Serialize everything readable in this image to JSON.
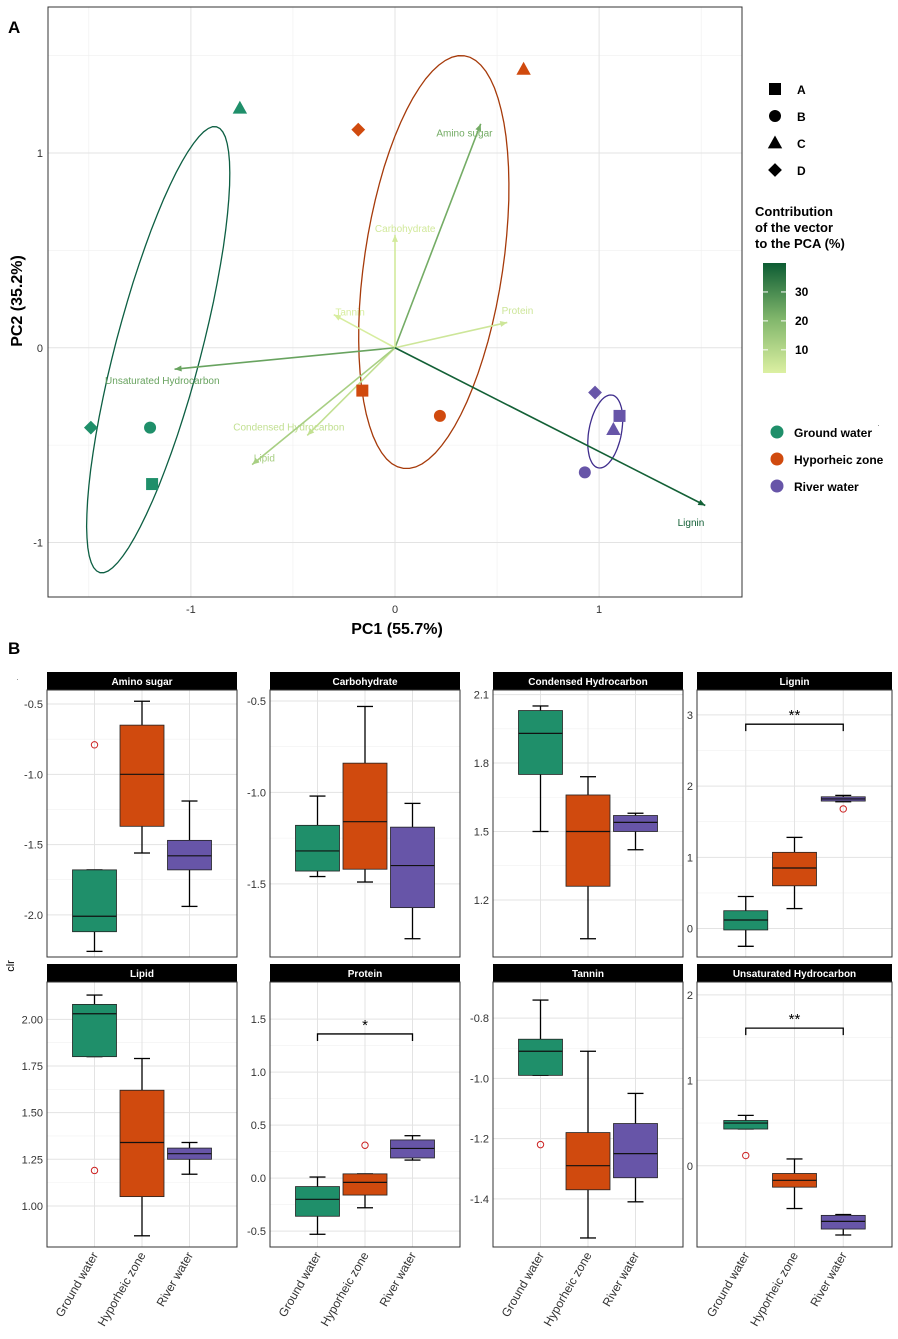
{
  "colors": {
    "ground": "#1f8f6a",
    "hyporheic": "#d04a0e",
    "river": "#6755a8",
    "ground_ellipse": "#0d5f43",
    "hyporheic_ellipse": "#a63a0a",
    "river_ellipse": "#3f2d8c",
    "facet_bg": "#000000",
    "grid": "#e3e3e3",
    "outlier": "#cc2222"
  },
  "chart_data": [
    {
      "type": "scatter",
      "subtype": "pca-biplot",
      "panel_label": "A",
      "xlabel": "PC1 (55.7%)",
      "ylabel": "PC2 (35.2%)",
      "xlim": [
        -1.7,
        1.7
      ],
      "ylim": [
        -1.28,
        1.75
      ],
      "xticks": [
        -1,
        0,
        1
      ],
      "yticks": [
        -1,
        0,
        1
      ],
      "points": [
        {
          "group": "Ground water",
          "shape": "A",
          "x": -1.19,
          "y": -0.7
        },
        {
          "group": "Ground water",
          "shape": "B",
          "x": -1.2,
          "y": -0.41
        },
        {
          "group": "Ground water",
          "shape": "C",
          "x": -0.76,
          "y": 1.23
        },
        {
          "group": "Ground water",
          "shape": "D",
          "x": -1.49,
          "y": -0.41
        },
        {
          "group": "Hyporheic zone",
          "shape": "A",
          "x": -0.16,
          "y": -0.22
        },
        {
          "group": "Hyporheic zone",
          "shape": "B",
          "x": 0.22,
          "y": -0.35
        },
        {
          "group": "Hyporheic zone",
          "shape": "C",
          "x": 0.63,
          "y": 1.43
        },
        {
          "group": "Hyporheic zone",
          "shape": "D",
          "x": -0.18,
          "y": 1.12
        },
        {
          "group": "River water",
          "shape": "A",
          "x": 1.1,
          "y": -0.35
        },
        {
          "group": "River water",
          "shape": "B",
          "x": 0.93,
          "y": -0.64
        },
        {
          "group": "River water",
          "shape": "C",
          "x": 1.07,
          "y": -0.42
        },
        {
          "group": "River water",
          "shape": "D",
          "x": 0.98,
          "y": -0.23
        }
      ],
      "ellipses": [
        {
          "group": "Ground water",
          "cx": -1.16,
          "cy": -0.01,
          "rx": 1.18,
          "ry": 0.21,
          "angle_deg": 76
        },
        {
          "group": "Hyporheic zone",
          "cx": 0.19,
          "cy": 0.44,
          "rx": 1.07,
          "ry": 0.34,
          "angle_deg": 82
        },
        {
          "group": "River water",
          "cx": 1.03,
          "cy": -0.43,
          "rx": 0.19,
          "ry": 0.08,
          "angle_deg": 80
        }
      ],
      "vectors": [
        {
          "label": "Amino sugar",
          "x": 0.42,
          "y": 1.15,
          "contribution": 22,
          "label_x": 0.34,
          "label_y": 1.1
        },
        {
          "label": "Carbohydrate",
          "x": 0.0,
          "y": 0.58,
          "contribution": 4,
          "label_x": 0.05,
          "label_y": 0.61
        },
        {
          "label": "Tannin",
          "x": -0.3,
          "y": 0.17,
          "contribution": 3,
          "label_x": -0.22,
          "label_y": 0.18
        },
        {
          "label": "Protein",
          "x": 0.55,
          "y": 0.13,
          "contribution": 5,
          "label_x": 0.6,
          "label_y": 0.19
        },
        {
          "label": "Unsaturated Hydrocarbon",
          "x": -1.08,
          "y": -0.11,
          "contribution": 24,
          "label_x": -1.14,
          "label_y": -0.17
        },
        {
          "label": "Condensed Hydrocarbon",
          "x": -0.43,
          "y": -0.45,
          "contribution": 7,
          "label_x": -0.52,
          "label_y": -0.41
        },
        {
          "label": "Lipid",
          "x": -0.7,
          "y": -0.6,
          "contribution": 12,
          "label_x": -0.64,
          "label_y": -0.57
        },
        {
          "label": "Lignin",
          "x": 1.52,
          "y": -0.81,
          "contribution": 39,
          "label_x": 1.45,
          "label_y": -0.9
        }
      ],
      "legend_shapes": {
        "title": "",
        "items": [
          "A",
          "B",
          "C",
          "D"
        ]
      },
      "legend_colorbar": {
        "title_lines": [
          "Contribution",
          "of the vector",
          "to the PCA (%)"
        ],
        "ticks": [
          10,
          20,
          30
        ],
        "range": [
          2,
          40
        ]
      },
      "legend_groups": {
        "items": [
          "Ground water",
          "Hyporheic zone",
          "River water"
        ]
      }
    },
    {
      "type": "box",
      "panel_label": "B",
      "ylabel": "clr",
      "categories": [
        "Ground water",
        "Hyporheic zone",
        "River water"
      ],
      "facets": [
        {
          "title": "Amino sugar",
          "ylim": [
            -2.3,
            -0.4
          ],
          "yticks": [
            -0.5,
            -1.0,
            -1.5,
            -2.0
          ],
          "tick_labels": [
            "-0.5",
            "-1.0",
            "-1.5",
            "-2.0"
          ],
          "boxes": [
            {
              "min": -2.26,
              "q1": -2.12,
              "median": -2.01,
              "q3": -1.68,
              "max": -1.68,
              "outliers": [
                -0.79
              ]
            },
            {
              "min": -1.56,
              "q1": -1.37,
              "median": -1.0,
              "q3": -0.65,
              "max": -0.48,
              "outliers": []
            },
            {
              "min": -1.94,
              "q1": -1.68,
              "median": -1.58,
              "q3": -1.47,
              "max": -1.19,
              "outliers": []
            }
          ],
          "significance": null
        },
        {
          "title": "Carbohydrate",
          "ylim": [
            -1.9,
            -0.44
          ],
          "yticks": [
            -0.5,
            -1.0,
            -1.5
          ],
          "tick_labels": [
            "-0.5",
            "-1.0",
            "-1.5"
          ],
          "boxes": [
            {
              "min": -1.46,
              "q1": -1.43,
              "median": -1.32,
              "q3": -1.18,
              "max": -1.02,
              "outliers": []
            },
            {
              "min": -1.49,
              "q1": -1.42,
              "median": -1.16,
              "q3": -0.84,
              "max": -0.53,
              "outliers": []
            },
            {
              "min": -1.8,
              "q1": -1.63,
              "median": -1.4,
              "q3": -1.19,
              "max": -1.06,
              "outliers": []
            }
          ],
          "significance": null
        },
        {
          "title": "Condensed Hydrocarbon",
          "ylim": [
            0.95,
            2.12
          ],
          "yticks": [
            2.1,
            1.8,
            1.5,
            1.2
          ],
          "tick_labels": [
            "2.1",
            "1.8",
            "1.5",
            "1.2"
          ],
          "boxes": [
            {
              "min": 1.5,
              "q1": 1.75,
              "median": 1.93,
              "q3": 2.03,
              "max": 2.05,
              "outliers": []
            },
            {
              "min": 1.03,
              "q1": 1.26,
              "median": 1.5,
              "q3": 1.66,
              "max": 1.74,
              "outliers": []
            },
            {
              "min": 1.42,
              "q1": 1.5,
              "median": 1.54,
              "q3": 1.57,
              "max": 1.58,
              "outliers": []
            }
          ],
          "significance": null
        },
        {
          "title": "Lignin",
          "ylim": [
            -0.4,
            3.35
          ],
          "yticks": [
            3,
            2,
            1,
            0
          ],
          "tick_labels": [
            "3",
            "2",
            "1",
            "0"
          ],
          "boxes": [
            {
              "min": -0.25,
              "q1": -0.02,
              "median": 0.12,
              "q3": 0.25,
              "max": 0.45,
              "outliers": []
            },
            {
              "min": 0.28,
              "q1": 0.6,
              "median": 0.85,
              "q3": 1.07,
              "max": 1.28,
              "outliers": []
            },
            {
              "min": 1.78,
              "q1": 1.79,
              "median": 1.82,
              "q3": 1.85,
              "max": 1.87,
              "outliers": [
                1.68
              ]
            }
          ],
          "significance": {
            "label": "**",
            "from": 0,
            "to": 2,
            "y": 2.87
          }
        },
        {
          "title": "Lipid",
          "ylim": [
            0.78,
            2.2
          ],
          "yticks": [
            2.0,
            1.75,
            1.5,
            1.25,
            1.0
          ],
          "tick_labels": [
            "2.00",
            "1.75",
            "1.50",
            "1.25",
            "1.00"
          ],
          "boxes": [
            {
              "min": 1.8,
              "q1": 1.8,
              "median": 2.03,
              "q3": 2.08,
              "max": 2.13,
              "outliers": [
                1.19
              ]
            },
            {
              "min": 0.84,
              "q1": 1.05,
              "median": 1.34,
              "q3": 1.62,
              "max": 1.79,
              "outliers": []
            },
            {
              "min": 1.17,
              "q1": 1.25,
              "median": 1.28,
              "q3": 1.31,
              "max": 1.34,
              "outliers": []
            }
          ],
          "significance": null
        },
        {
          "title": "Protein",
          "ylim": [
            -0.65,
            1.85
          ],
          "yticks": [
            1.5,
            1.0,
            0.5,
            0.0,
            -0.5
          ],
          "tick_labels": [
            "1.5",
            "1.0",
            "0.5",
            "0.0",
            "-0.5"
          ],
          "boxes": [
            {
              "min": -0.53,
              "q1": -0.36,
              "median": -0.2,
              "q3": -0.08,
              "max": 0.01,
              "outliers": []
            },
            {
              "min": -0.28,
              "q1": -0.16,
              "median": -0.04,
              "q3": 0.04,
              "max": 0.04,
              "outliers": [
                0.31
              ]
            },
            {
              "min": 0.17,
              "q1": 0.19,
              "median": 0.28,
              "q3": 0.36,
              "max": 0.4,
              "outliers": []
            }
          ],
          "significance": {
            "label": "*",
            "from": 0,
            "to": 2,
            "y": 1.36
          }
        },
        {
          "title": "Tannin",
          "ylim": [
            -1.56,
            -0.68
          ],
          "yticks": [
            -0.8,
            -1.0,
            -1.2,
            -1.4
          ],
          "tick_labels": [
            "-0.8",
            "-1.0",
            "-1.2",
            "-1.4"
          ],
          "boxes": [
            {
              "min": -0.99,
              "q1": -0.99,
              "median": -0.91,
              "q3": -0.87,
              "max": -0.74,
              "outliers": [
                -1.22
              ]
            },
            {
              "min": -1.53,
              "q1": -1.37,
              "median": -1.29,
              "q3": -1.18,
              "max": -0.91,
              "outliers": []
            },
            {
              "min": -1.41,
              "q1": -1.33,
              "median": -1.25,
              "q3": -1.15,
              "max": -1.05,
              "outliers": []
            }
          ],
          "significance": null
        },
        {
          "title": "Unsaturated Hydrocarbon",
          "ylim": [
            -0.95,
            2.15
          ],
          "yticks": [
            2,
            1,
            0
          ],
          "tick_labels": [
            "2",
            "1",
            "0"
          ],
          "boxes": [
            {
              "min": 0.43,
              "q1": 0.43,
              "median": 0.5,
              "q3": 0.53,
              "max": 0.59,
              "outliers": [
                0.12
              ]
            },
            {
              "min": -0.5,
              "q1": -0.25,
              "median": -0.17,
              "q3": -0.09,
              "max": 0.08,
              "outliers": []
            },
            {
              "min": -0.81,
              "q1": -0.74,
              "median": -0.65,
              "q3": -0.58,
              "max": -0.57,
              "outliers": []
            }
          ],
          "significance": {
            "label": "**",
            "from": 0,
            "to": 2,
            "y": 1.61
          }
        }
      ]
    }
  ],
  "stray_marks": {
    "top": "·",
    "legend": "·"
  }
}
